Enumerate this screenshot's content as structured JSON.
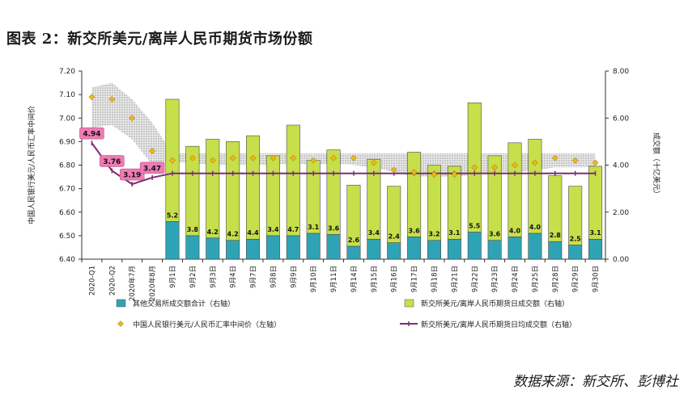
{
  "title": "图表 2：新交所美元/离岸人民币期货市场份额",
  "source": "数据来源：新交所、彭博社",
  "colors": {
    "other": "#2fa3b6",
    "sgx": "#c6df4a",
    "rate": "#f2b716",
    "avg_line": "#7a2e75",
    "callout": "#ef7bb4",
    "band": "#b9b9b9"
  },
  "chart_data": {
    "type": "bar",
    "categories": [
      "2020-Q1",
      "2020-Q2",
      "2020年7月",
      "2020年8月",
      "9月1日",
      "9月2日",
      "9月3日",
      "9月4日",
      "9月7日",
      "9月8日",
      "9月9日",
      "9月10日",
      "9月11日",
      "9月14日",
      "9月15日",
      "9月16日",
      "9月17日",
      "9月18日",
      "9月21日",
      "9月22日",
      "9月23日",
      "9月24日",
      "9月25日",
      "9月28日",
      "9月29日",
      "9月30日"
    ],
    "xlabel": "",
    "ylabel_left": "中国人民银行美元/人民币汇率中间价",
    "ylabel_right": "成交额（十亿美元）",
    "ylim_left": [
      6.4,
      7.2
    ],
    "ylim_right": [
      0.0,
      8.0
    ],
    "yticks_left": [
      "6.40",
      "6.50",
      "6.60",
      "6.70",
      "6.80",
      "6.90",
      "7.00",
      "7.10",
      "7.20"
    ],
    "yticks_right": [
      "0.00",
      "2.00",
      "4.00",
      "6.00",
      "8.00"
    ],
    "series": [
      {
        "name": "其他交易所成交额合计（右轴）",
        "kind": "bar",
        "axis": "right",
        "values": [
          null,
          null,
          null,
          null,
          1.6,
          1.0,
          0.9,
          0.8,
          0.85,
          1.0,
          1.0,
          1.1,
          1.05,
          0.55,
          0.85,
          0.7,
          0.95,
          0.8,
          0.85,
          1.15,
          0.8,
          0.95,
          1.1,
          0.75,
          0.6,
          0.85
        ]
      },
      {
        "name": "新交所美元/离岸人民币期货日成交额（右轴）",
        "kind": "bar",
        "axis": "right",
        "values": [
          null,
          null,
          null,
          null,
          5.2,
          3.8,
          4.2,
          4.2,
          4.4,
          3.4,
          4.7,
          3.1,
          3.6,
          2.6,
          3.4,
          2.4,
          3.6,
          3.2,
          3.1,
          5.5,
          3.6,
          4.0,
          4.0,
          2.8,
          2.5,
          3.1
        ],
        "labels": [
          "",
          "",
          "",
          "",
          "5.2",
          "3.8",
          "4.2",
          "4.2",
          "4.4",
          "3.4",
          "4.7",
          "3.1",
          "3.6",
          "2.6",
          "3.4",
          "2.4",
          "3.6",
          "3.2",
          "3.1",
          "5.5",
          "3.6",
          "4.0",
          "4.0",
          "2.8",
          "2.5",
          "3.1"
        ]
      },
      {
        "name": "中国人民银行美元/人民币汇率中间价（左轴）",
        "kind": "marker",
        "axis": "left",
        "values": [
          7.09,
          7.08,
          7.0,
          6.86,
          6.82,
          6.83,
          6.82,
          6.83,
          6.83,
          6.83,
          6.83,
          6.82,
          6.83,
          6.83,
          6.81,
          6.78,
          6.77,
          6.76,
          6.76,
          6.79,
          6.79,
          6.8,
          6.81,
          6.83,
          6.82,
          6.81
        ]
      },
      {
        "name": "新交所美元/离岸人民币期货日均成交额（右轴）",
        "kind": "line",
        "axis": "right",
        "values": [
          4.94,
          3.76,
          3.19,
          3.47,
          3.65,
          3.65,
          3.65,
          3.65,
          3.65,
          3.65,
          3.65,
          3.65,
          3.65,
          3.65,
          3.65,
          3.65,
          3.65,
          3.65,
          3.65,
          3.65,
          3.65,
          3.65,
          3.65,
          3.65,
          3.65,
          3.65
        ],
        "callouts": [
          {
            "index": 0,
            "label": "4.94"
          },
          {
            "index": 1,
            "label": "3.76"
          },
          {
            "index": 2,
            "label": "3.19"
          },
          {
            "index": 3,
            "label": "3.47"
          }
        ]
      }
    ],
    "band": {
      "axis": "left",
      "upper": [
        7.13,
        7.15,
        7.08,
        6.98,
        6.85,
        6.85,
        6.85,
        6.85,
        6.85,
        6.85,
        6.85,
        6.85,
        6.85,
        6.85,
        6.85,
        6.85,
        6.85,
        6.85,
        6.85,
        6.85,
        6.85,
        6.85,
        6.85,
        6.85,
        6.85,
        6.85
      ],
      "lower": [
        6.96,
        6.97,
        6.91,
        6.8,
        6.81,
        6.81,
        6.8,
        6.8,
        6.8,
        6.8,
        6.81,
        6.8,
        6.81,
        6.8,
        6.79,
        6.77,
        6.75,
        6.75,
        6.75,
        6.76,
        6.77,
        6.77,
        6.78,
        6.79,
        6.79,
        6.79
      ]
    },
    "legend_position": "bottom",
    "grid": false
  }
}
